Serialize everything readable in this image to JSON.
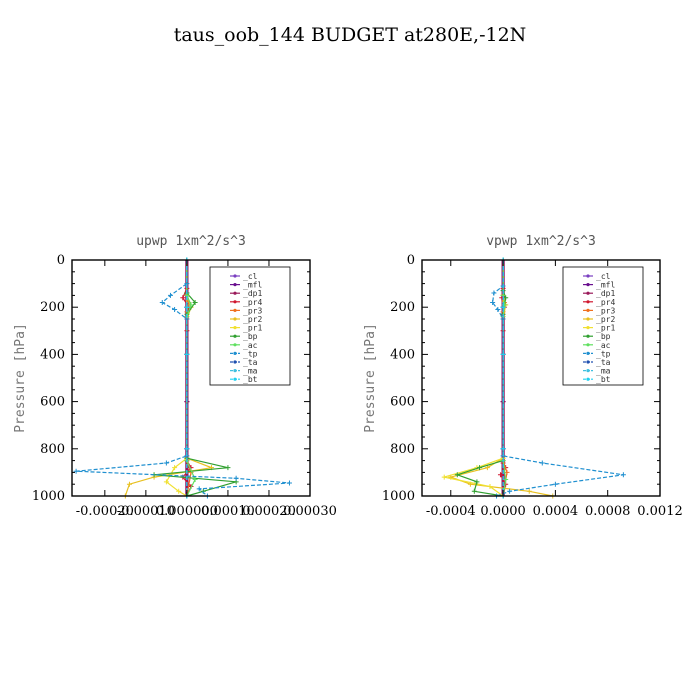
{
  "title": "taus_oob_144  BUDGET at280E,-12N",
  "chart_data": [
    {
      "type": "line",
      "title": "upwp",
      "units": "1xm^2/s^3",
      "ylabel": "Pressure [hPa]",
      "ylim": [
        1000,
        0
      ],
      "yticks": [
        0,
        200,
        400,
        600,
        800,
        1000
      ],
      "xlim": [
        -0.00028,
        0.0003
      ],
      "xticks": [
        -0.0002,
        -0.0001,
        0.0,
        0.0001,
        0.0002,
        0.0003
      ],
      "xtick_labels": [
        "-0.00020",
        "-0.00010",
        "0.000000",
        "0.00010",
        "0.00020",
        "0.00030"
      ],
      "legend": [
        "_cl",
        "_mfl",
        "_dp1",
        "_pr4",
        "_pr3",
        "_pr2",
        "_pr1",
        "_bp",
        "_ac",
        "_tp",
        "_ta",
        "_ma",
        "_bt"
      ],
      "series": [
        {
          "name": "_cl",
          "color": "#7a3fc0",
          "x": [
            0,
            0,
            0,
            0,
            0,
            0
          ],
          "y": [
            0,
            200,
            400,
            600,
            800,
            1000
          ]
        },
        {
          "name": "_mfl",
          "color": "#6a0f8f",
          "x": [
            0,
            0,
            0,
            0,
            0,
            0
          ],
          "y": [
            0,
            200,
            400,
            600,
            800,
            1000
          ]
        },
        {
          "name": "_dp1",
          "color": "#9a1a5a",
          "x": [
            0,
            0,
            0,
            0,
            0,
            0
          ],
          "y": [
            0,
            200,
            400,
            600,
            800,
            1000
          ]
        },
        {
          "name": "_pr4",
          "color": "#d01830",
          "x": [
            0,
            0,
            -1e-05,
            5e-06,
            0,
            0,
            1e-05,
            -1e-05,
            1e-05,
            0
          ],
          "y": [
            0,
            120,
            160,
            200,
            300,
            850,
            880,
            920,
            960,
            1000
          ]
        },
        {
          "name": "_pr3",
          "color": "#f07020",
          "x": [
            0,
            0,
            5e-06,
            0,
            0,
            1e-05,
            0
          ],
          "y": [
            0,
            140,
            180,
            220,
            850,
            900,
            1000
          ]
        },
        {
          "name": "_pr2",
          "color": "#e8c020",
          "x": [
            0,
            0,
            1e-05,
            0,
            0,
            6e-05,
            -8e-05,
            -0.00014,
            -0.00015
          ],
          "y": [
            0,
            150,
            200,
            250,
            840,
            880,
            920,
            950,
            1000
          ]
        },
        {
          "name": "_pr1",
          "color": "#f0e030",
          "x": [
            0,
            0,
            0,
            0,
            -3e-05,
            -5e-05,
            -2e-05,
            0
          ],
          "y": [
            0,
            200,
            400,
            840,
            880,
            940,
            980,
            1000
          ]
        },
        {
          "name": "_bp",
          "color": "#30a030",
          "x": [
            0,
            0,
            2e-05,
            0,
            0,
            0.0001,
            -8e-05,
            0.00012,
            4e-05,
            0
          ],
          "y": [
            0,
            140,
            180,
            230,
            840,
            880,
            910,
            940,
            980,
            1000
          ]
        },
        {
          "name": "_ac",
          "color": "#60e060",
          "x": [
            0,
            0,
            1e-05,
            0,
            0,
            2e-05,
            0
          ],
          "y": [
            0,
            150,
            190,
            240,
            850,
            930,
            1000
          ]
        },
        {
          "name": "_tp",
          "color": "#2090d0",
          "x": [
            0,
            0,
            -4e-05,
            -6e-05,
            -3e-05,
            0,
            0,
            -5e-05,
            -0.00027,
            0.00012,
            0.00025,
            3e-05,
            5e-05
          ],
          "y": [
            0,
            100,
            150,
            180,
            210,
            250,
            830,
            860,
            895,
            925,
            945,
            970,
            1000
          ]
        },
        {
          "name": "_ta",
          "color": "#2050b0",
          "x": [
            0,
            0,
            0,
            0,
            0
          ],
          "y": [
            0,
            200,
            400,
            800,
            1000
          ]
        },
        {
          "name": "_ma",
          "color": "#40c0e0",
          "x": [
            0,
            0,
            0,
            0,
            0
          ],
          "y": [
            0,
            200,
            400,
            800,
            1000
          ]
        },
        {
          "name": "_bt",
          "color": "#20d0f0",
          "x": [
            0,
            0,
            0,
            0,
            0
          ],
          "y": [
            0,
            200,
            400,
            800,
            1000
          ]
        }
      ]
    },
    {
      "type": "line",
      "title": "vpwp",
      "units": "1xm^2/s^3",
      "ylabel": "Pressure [hPa]",
      "ylim": [
        1000,
        0
      ],
      "yticks": [
        0,
        200,
        400,
        600,
        800,
        1000
      ],
      "xlim": [
        -0.00062,
        0.0012
      ],
      "xticks": [
        -0.0004,
        0.0,
        0.0004,
        0.0008,
        0.0012
      ],
      "xtick_labels": [
        "-0.0004",
        "0.0000",
        "0.0004",
        "0.0008",
        "0.0012"
      ],
      "legend": [
        "_cl",
        "_mfl",
        "_dp1",
        "_pr4",
        "_pr3",
        "_pr2",
        "_pr1",
        "_bp",
        "_ac",
        "_tp",
        "_ta",
        "_ma",
        "_bt"
      ],
      "series": [
        {
          "name": "_cl",
          "color": "#7a3fc0",
          "x": [
            0,
            0,
            0,
            0,
            0,
            0
          ],
          "y": [
            0,
            200,
            400,
            600,
            800,
            1000
          ]
        },
        {
          "name": "_mfl",
          "color": "#6a0f8f",
          "x": [
            0,
            0,
            0,
            0,
            0,
            0
          ],
          "y": [
            0,
            200,
            400,
            600,
            800,
            1000
          ]
        },
        {
          "name": "_dp1",
          "color": "#9a1a5a",
          "x": [
            0,
            0,
            0,
            0,
            0,
            0
          ],
          "y": [
            0,
            200,
            400,
            600,
            800,
            1000
          ]
        },
        {
          "name": "_pr4",
          "color": "#d01830",
          "x": [
            0,
            0,
            -1e-05,
            1e-05,
            0,
            0,
            2e-05,
            -2e-05,
            2e-05,
            0
          ],
          "y": [
            0,
            120,
            160,
            200,
            300,
            860,
            880,
            910,
            950,
            1000
          ]
        },
        {
          "name": "_pr3",
          "color": "#f07020",
          "x": [
            0,
            0,
            1e-05,
            0,
            0,
            3e-05,
            0
          ],
          "y": [
            0,
            150,
            180,
            220,
            850,
            900,
            1000
          ]
        },
        {
          "name": "_pr2",
          "color": "#e8c020",
          "x": [
            0,
            0,
            2e-05,
            0,
            0,
            -0.00012,
            -0.0004,
            -0.00025,
            0.0002,
            0.00038
          ],
          "y": [
            0,
            150,
            190,
            250,
            840,
            880,
            920,
            950,
            980,
            1000
          ]
        },
        {
          "name": "_pr1",
          "color": "#f0e030",
          "x": [
            0,
            0,
            0,
            0,
            -0.0002,
            -0.00045,
            -0.0001,
            0
          ],
          "y": [
            0,
            200,
            400,
            840,
            880,
            920,
            960,
            1000
          ]
        },
        {
          "name": "_bp",
          "color": "#30a030",
          "x": [
            0,
            0,
            2e-05,
            0,
            0,
            -0.00018,
            -0.00035,
            -0.0002,
            -0.00022,
            0
          ],
          "y": [
            0,
            130,
            160,
            230,
            850,
            880,
            910,
            940,
            980,
            1000
          ]
        },
        {
          "name": "_ac",
          "color": "#60e060",
          "x": [
            0,
            0,
            1e-05,
            0,
            0,
            2e-05,
            0
          ],
          "y": [
            0,
            150,
            190,
            240,
            850,
            930,
            1000
          ]
        },
        {
          "name": "_tp",
          "color": "#2090d0",
          "x": [
            0,
            0,
            -7e-05,
            -8e-05,
            -4e-05,
            0,
            0,
            0.0003,
            0.00092,
            0.0004,
            5e-05,
            -5e-05
          ],
          "y": [
            0,
            110,
            140,
            180,
            210,
            250,
            830,
            860,
            910,
            950,
            980,
            1000
          ]
        },
        {
          "name": "_ta",
          "color": "#2050b0",
          "x": [
            0,
            0,
            0,
            0,
            0
          ],
          "y": [
            0,
            200,
            400,
            800,
            1000
          ]
        },
        {
          "name": "_ma",
          "color": "#40c0e0",
          "x": [
            0,
            0,
            0,
            0,
            0
          ],
          "y": [
            0,
            200,
            400,
            800,
            1000
          ]
        },
        {
          "name": "_bt",
          "color": "#20d0f0",
          "x": [
            0,
            0,
            0,
            0,
            0
          ],
          "y": [
            0,
            200,
            400,
            800,
            1000
          ]
        }
      ]
    }
  ]
}
